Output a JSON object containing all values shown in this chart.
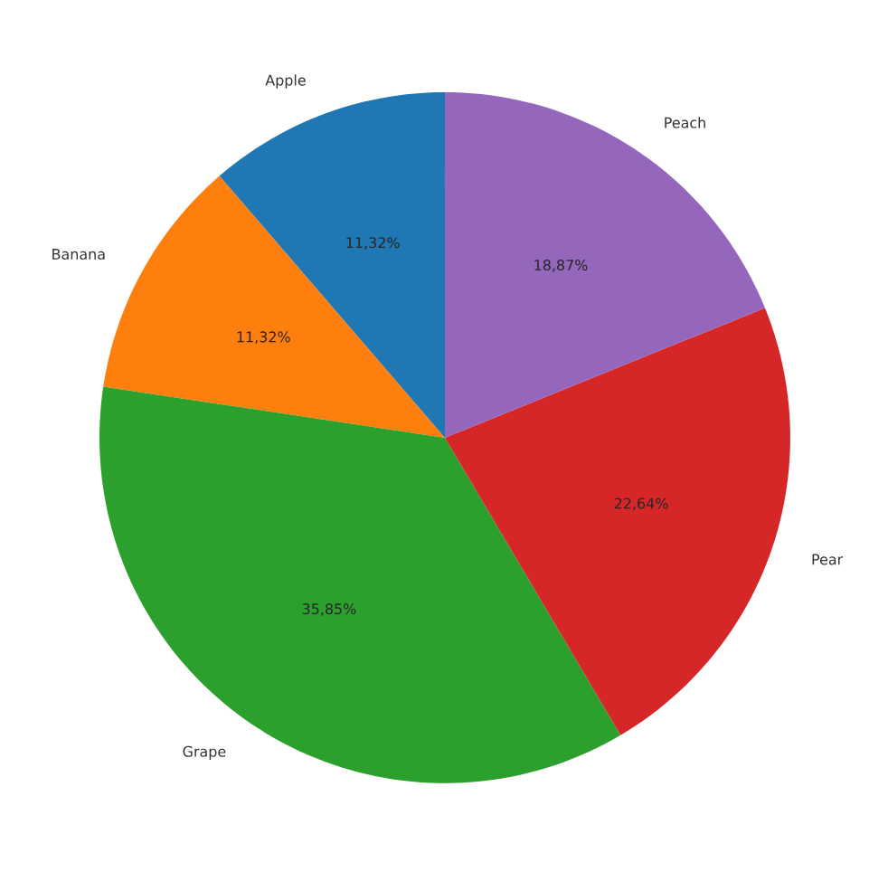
{
  "chart_data": {
    "type": "pie",
    "categories": [
      "Apple",
      "Banana",
      "Grape",
      "Pear",
      "Peach"
    ],
    "values": [
      11.32,
      11.32,
      35.85,
      22.64,
      18.87
    ],
    "colors": [
      "#1f77b4",
      "#ff7f0e",
      "#2ca02c",
      "#d62728",
      "#9467bd"
    ],
    "value_labels": [
      "11,32%",
      "11,32%",
      "35,85%",
      "22,64%",
      "18,87%"
    ]
  }
}
